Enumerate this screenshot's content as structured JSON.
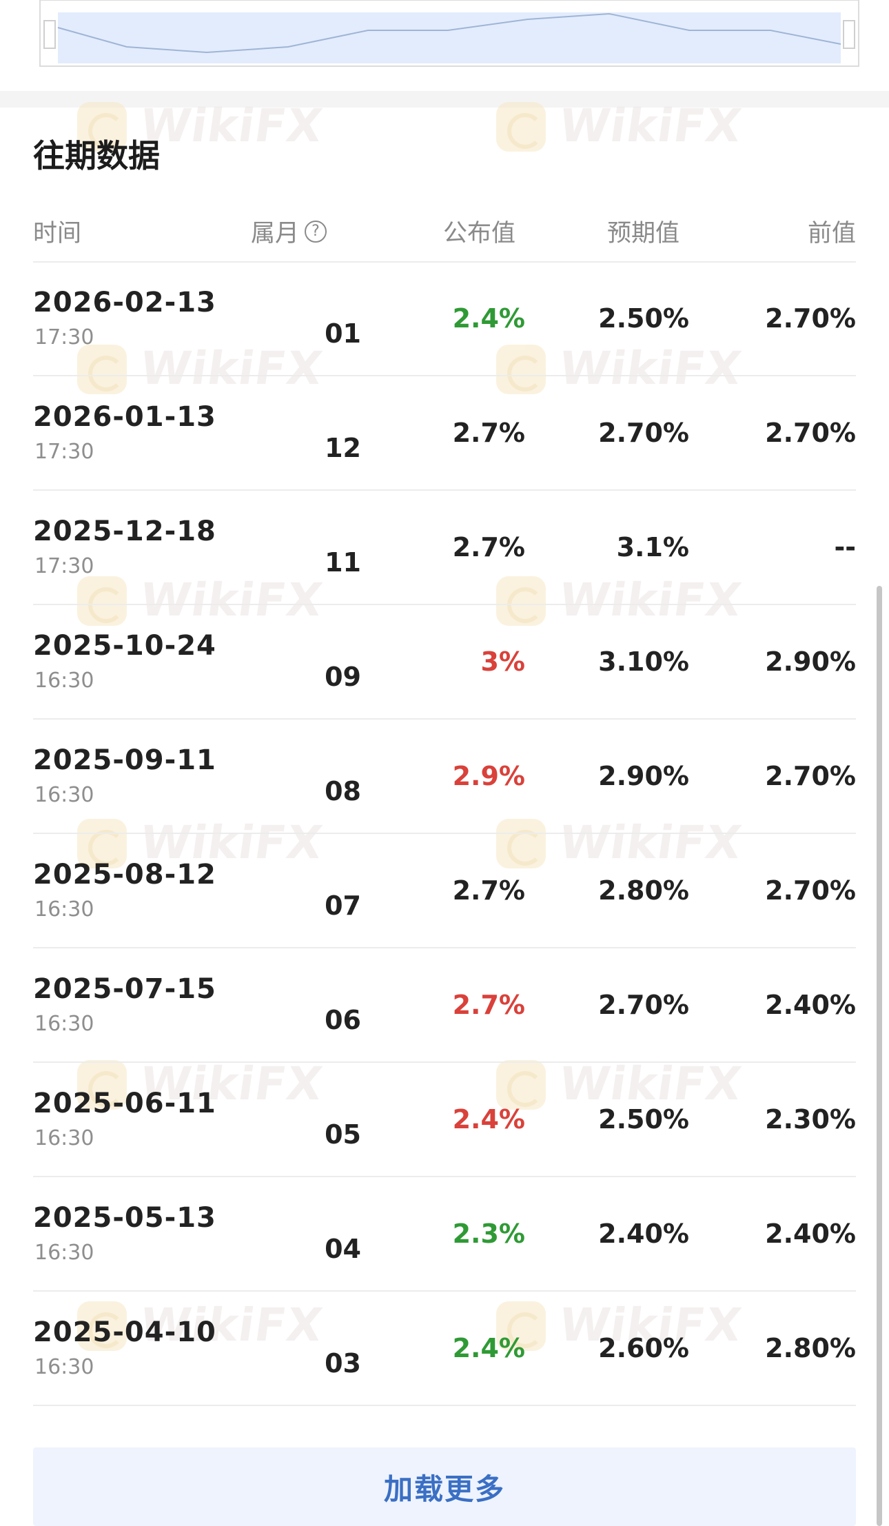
{
  "section": {
    "title": "往期数据"
  },
  "table": {
    "headers": {
      "time": "时间",
      "month": "属月",
      "published": "公布值",
      "expected": "预期值",
      "previous": "前值"
    },
    "rows": [
      {
        "date": "2026-02-13",
        "time": "17:30",
        "month": "01",
        "published": "2.4%",
        "published_trend": "up",
        "expected": "2.50%",
        "previous": "2.70%"
      },
      {
        "date": "2026-01-13",
        "time": "17:30",
        "month": "12",
        "published": "2.7%",
        "published_trend": "neutral",
        "expected": "2.70%",
        "previous": "2.70%"
      },
      {
        "date": "2025-12-18",
        "time": "17:30",
        "month": "11",
        "published": "2.7%",
        "published_trend": "neutral",
        "expected": "3.1%",
        "previous": "--"
      },
      {
        "date": "2025-10-24",
        "time": "16:30",
        "month": "09",
        "published": "3%",
        "published_trend": "down",
        "expected": "3.10%",
        "previous": "2.90%"
      },
      {
        "date": "2025-09-11",
        "time": "16:30",
        "month": "08",
        "published": "2.9%",
        "published_trend": "down",
        "expected": "2.90%",
        "previous": "2.70%"
      },
      {
        "date": "2025-08-12",
        "time": "16:30",
        "month": "07",
        "published": "2.7%",
        "published_trend": "neutral",
        "expected": "2.80%",
        "previous": "2.70%"
      },
      {
        "date": "2025-07-15",
        "time": "16:30",
        "month": "06",
        "published": "2.7%",
        "published_trend": "down",
        "expected": "2.70%",
        "previous": "2.40%"
      },
      {
        "date": "2025-06-11",
        "time": "16:30",
        "month": "05",
        "published": "2.4%",
        "published_trend": "down",
        "expected": "2.50%",
        "previous": "2.30%"
      },
      {
        "date": "2025-05-13",
        "time": "16:30",
        "month": "04",
        "published": "2.3%",
        "published_trend": "up",
        "expected": "2.40%",
        "previous": "2.40%"
      },
      {
        "date": "2025-04-10",
        "time": "16:30",
        "month": "03",
        "published": "2.4%",
        "published_trend": "up",
        "expected": "2.60%",
        "previous": "2.80%"
      }
    ]
  },
  "load_more": {
    "label": "加载更多"
  },
  "watermark": {
    "text": "WikiFX"
  },
  "colors": {
    "up": "#2f9a35",
    "down": "#d9413a",
    "accent": "#3a6fc4",
    "chart_fill": "#e3ecfc",
    "chart_line": "#9fb4d6"
  }
}
